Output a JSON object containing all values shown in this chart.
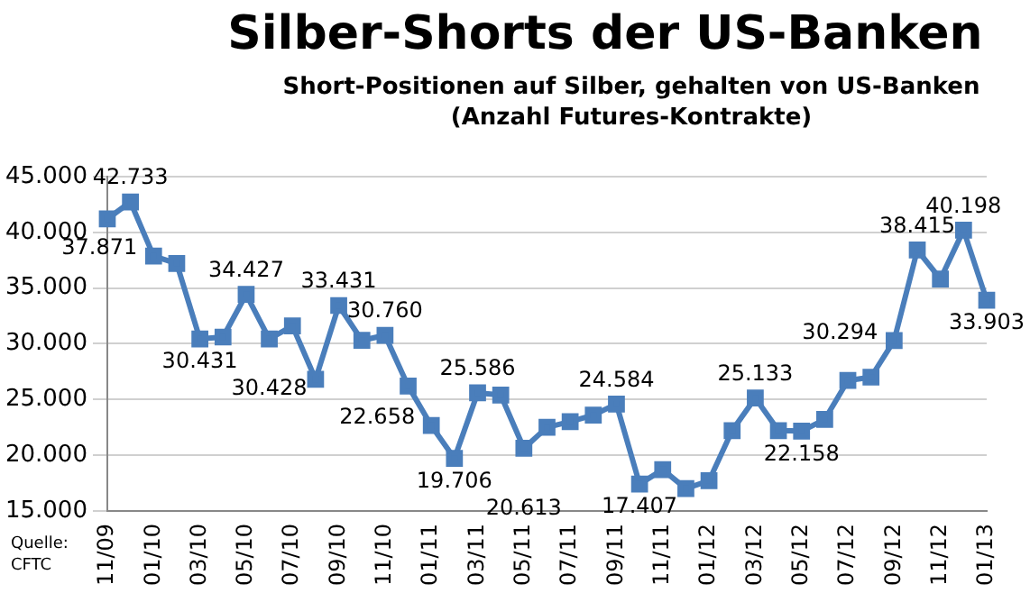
{
  "chart_data": {
    "type": "line",
    "title": "Silber-Shorts der US-Banken",
    "subtitle": "Short-Positionen auf Silber, gehalten von US-Banken (Anzahl Futures-Kontrakte)",
    "annotations": [
      "Quelle:\nCFTC"
    ],
    "categories": [
      "11/09",
      null,
      "01/10",
      null,
      "03/10",
      null,
      "05/10",
      null,
      "07/10",
      null,
      "09/10",
      null,
      "11/10",
      null,
      "01/11",
      null,
      "03/11",
      null,
      "05/11",
      null,
      "07/11",
      null,
      "09/11",
      null,
      "11/11",
      null,
      "01/12",
      null,
      "03/12",
      null,
      "05/12",
      null,
      "07/12",
      null,
      "09/12",
      null,
      "11/12",
      null,
      "01/13"
    ],
    "series": [
      {
        "color": "#4a7ebb",
        "values": [
          41200,
          42733,
          37871,
          37200,
          30431,
          30600,
          34427,
          30428,
          31600,
          26800,
          33431,
          30300,
          30760,
          26200,
          22658,
          19706,
          25586,
          25400,
          20613,
          22500,
          23000,
          23600,
          24584,
          17407,
          18700,
          17000,
          17700,
          22200,
          25133,
          22200,
          22158,
          23200,
          26700,
          27000,
          30294,
          38415,
          35800,
          40198,
          33903
        ],
        "value_labels": [
          null,
          "42.733",
          "37.871",
          null,
          "30.431",
          null,
          "34.427",
          "30.428",
          null,
          null,
          "33.431",
          null,
          "30.760",
          null,
          "22.658",
          "19.706",
          "25.586",
          null,
          "20.613",
          null,
          null,
          null,
          "24.584",
          "17.407",
          null,
          null,
          null,
          null,
          "25.133",
          null,
          "22.158",
          null,
          null,
          null,
          "30.294",
          "38.415",
          null,
          "40.198",
          "33.903"
        ]
      }
    ],
    "ylim": [
      15000,
      45000
    ],
    "yticks": [
      {
        "value": 15000,
        "label": "15.000"
      },
      {
        "value": 20000,
        "label": "20.000"
      },
      {
        "value": 25000,
        "label": "25.000"
      },
      {
        "value": 30000,
        "label": "30.000"
      },
      {
        "value": 35000,
        "label": "35.000"
      },
      {
        "value": 40000,
        "label": "40.000"
      },
      {
        "value": 45000,
        "label": "45.000"
      }
    ],
    "grid": "y",
    "marker": "square",
    "line_style": "solid",
    "legend": false
  }
}
